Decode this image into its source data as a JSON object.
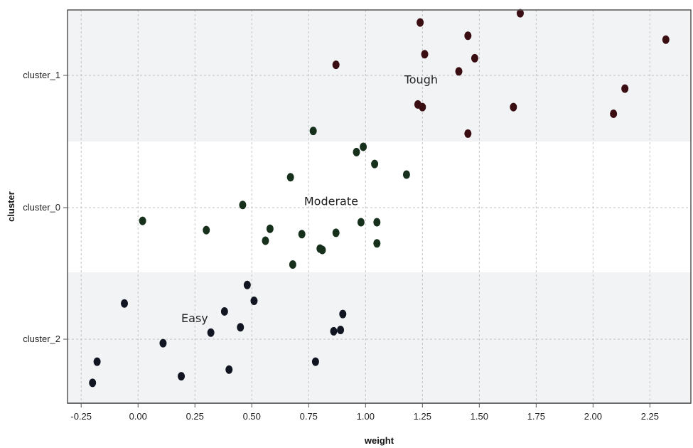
{
  "chart_data": {
    "type": "scatter",
    "xlabel": "weight",
    "ylabel": "cluster",
    "xlim": [
      -0.31,
      2.43
    ],
    "x_ticks": [
      "-0.25",
      "0.00",
      "0.25",
      "0.50",
      "0.75",
      "1.00",
      "1.25",
      "1.50",
      "1.75",
      "2.00",
      "2.25"
    ],
    "categories": [
      "cluster_1",
      "cluster_0",
      "cluster_2"
    ],
    "grid": true,
    "colors": {
      "cluster_1": "#3a0d12",
      "cluster_0": "#16301c",
      "cluster_2": "#111522",
      "band_shade": "#f1f3f5",
      "grid": "#c2c2c2"
    },
    "annotations": [
      {
        "text": "Tough",
        "x": 1.17,
        "y_category": "cluster_1",
        "y_offset": -0.03
      },
      {
        "text": "Moderate",
        "x": 0.73,
        "y_category": "cluster_0",
        "y_offset": 0.05
      },
      {
        "text": "Easy",
        "x": 0.19,
        "y_category": "cluster_2",
        "y_offset": 0.16
      }
    ],
    "series": [
      {
        "name": "cluster_1",
        "points": [
          [
            1.68,
            0.47
          ],
          [
            1.24,
            0.4
          ],
          [
            1.45,
            0.3
          ],
          [
            2.32,
            0.27
          ],
          [
            1.26,
            0.16
          ],
          [
            1.48,
            0.13
          ],
          [
            0.87,
            0.08
          ],
          [
            1.41,
            0.03
          ],
          [
            2.14,
            -0.1
          ],
          [
            1.23,
            -0.22
          ],
          [
            1.25,
            -0.24
          ],
          [
            1.65,
            -0.24
          ],
          [
            2.09,
            -0.29
          ],
          [
            1.45,
            -0.44
          ]
        ]
      },
      {
        "name": "cluster_0",
        "points": [
          [
            0.77,
            0.58
          ],
          [
            0.99,
            0.46
          ],
          [
            0.96,
            0.42
          ],
          [
            1.04,
            0.33
          ],
          [
            1.18,
            0.25
          ],
          [
            0.67,
            0.23
          ],
          [
            0.46,
            0.02
          ],
          [
            0.02,
            -0.1
          ],
          [
            0.98,
            -0.11
          ],
          [
            1.05,
            -0.11
          ],
          [
            0.58,
            -0.16
          ],
          [
            0.3,
            -0.17
          ],
          [
            0.72,
            -0.2
          ],
          [
            0.87,
            -0.19
          ],
          [
            0.56,
            -0.25
          ],
          [
            1.05,
            -0.27
          ],
          [
            0.8,
            -0.31
          ],
          [
            0.81,
            -0.32
          ],
          [
            0.68,
            -0.43
          ]
        ]
      },
      {
        "name": "cluster_2",
        "points": [
          [
            0.48,
            0.41
          ],
          [
            0.51,
            0.29
          ],
          [
            -0.06,
            0.27
          ],
          [
            0.38,
            0.21
          ],
          [
            0.9,
            0.19
          ],
          [
            0.45,
            0.09
          ],
          [
            0.32,
            0.05
          ],
          [
            0.89,
            0.07
          ],
          [
            0.86,
            0.06
          ],
          [
            0.11,
            -0.03
          ],
          [
            -0.18,
            -0.17
          ],
          [
            0.78,
            -0.17
          ],
          [
            0.4,
            -0.23
          ],
          [
            0.19,
            -0.28
          ],
          [
            -0.2,
            -0.33
          ]
        ]
      }
    ]
  }
}
